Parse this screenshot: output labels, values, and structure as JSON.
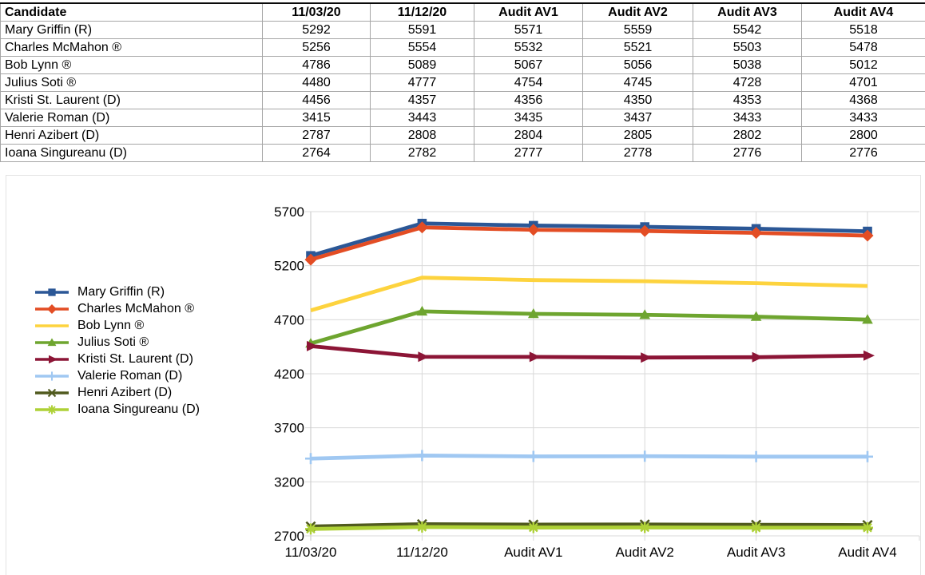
{
  "table": {
    "columns": [
      "Candidate",
      "11/03/20",
      "11/12/20",
      "Audit AV1",
      "Audit AV2",
      "Audit AV3",
      "Audit AV4"
    ],
    "rows": [
      {
        "candidate": "Mary Griffin (R)",
        "values": [
          5292,
          5591,
          5571,
          5559,
          5542,
          5518
        ]
      },
      {
        "candidate": "Charles McMahon ®",
        "values": [
          5256,
          5554,
          5532,
          5521,
          5503,
          5478
        ]
      },
      {
        "candidate": "Bob Lynn ®",
        "values": [
          4786,
          5089,
          5067,
          5056,
          5038,
          5012
        ]
      },
      {
        "candidate": "Julius Soti ®",
        "values": [
          4480,
          4777,
          4754,
          4745,
          4728,
          4701
        ]
      },
      {
        "candidate": "Kristi St. Laurent (D)",
        "values": [
          4456,
          4357,
          4356,
          4350,
          4353,
          4368
        ]
      },
      {
        "candidate": "Valerie Roman (D)",
        "values": [
          3415,
          3443,
          3435,
          3437,
          3433,
          3433
        ]
      },
      {
        "candidate": "Henri Azibert (D)",
        "values": [
          2787,
          2808,
          2804,
          2805,
          2802,
          2800
        ]
      },
      {
        "candidate": "Ioana Singureanu (D)",
        "values": [
          2764,
          2782,
          2777,
          2778,
          2776,
          2776
        ]
      }
    ]
  },
  "chart_data": {
    "type": "line",
    "title": "",
    "xlabel": "",
    "ylabel": "",
    "categories": [
      "11/03/20",
      "11/12/20",
      "Audit AV1",
      "Audit AV2",
      "Audit AV3",
      "Audit AV4"
    ],
    "series": [
      {
        "name": "Mary Griffin (R)",
        "color": "#2B5796",
        "marker": "square",
        "values": [
          5292,
          5591,
          5571,
          5559,
          5542,
          5518
        ]
      },
      {
        "name": "Charles McMahon ®",
        "color": "#E34D24",
        "marker": "diamond",
        "values": [
          5256,
          5554,
          5532,
          5521,
          5503,
          5478
        ]
      },
      {
        "name": "Bob Lynn ®",
        "color": "#FDD33E",
        "marker": "none",
        "values": [
          4786,
          5089,
          5067,
          5056,
          5038,
          5012
        ]
      },
      {
        "name": "Julius Soti ®",
        "color": "#6EA52F",
        "marker": "triangle-up",
        "values": [
          4480,
          4777,
          4754,
          4745,
          4728,
          4701
        ]
      },
      {
        "name": "Kristi St. Laurent (D)",
        "color": "#8C1536",
        "marker": "triangle-right",
        "values": [
          4456,
          4357,
          4356,
          4350,
          4353,
          4368
        ]
      },
      {
        "name": "Valerie Roman (D)",
        "color": "#A0C8F2",
        "marker": "plus",
        "values": [
          3415,
          3443,
          3435,
          3437,
          3433,
          3433
        ]
      },
      {
        "name": "Henri Azibert (D)",
        "color": "#505A1E",
        "marker": "x",
        "values": [
          2787,
          2808,
          2804,
          2805,
          2802,
          2800
        ]
      },
      {
        "name": "Ioana Singureanu (D)",
        "color": "#AED136",
        "marker": "asterisk",
        "values": [
          2764,
          2782,
          2777,
          2778,
          2776,
          2776
        ]
      }
    ],
    "ylim": [
      2700,
      5700
    ],
    "yticks": [
      2700,
      3200,
      3700,
      4200,
      4700,
      5200,
      5700
    ],
    "grid": true,
    "legend_position": "left",
    "gridline_color": "#D9D9D9",
    "axis_line_color": "#C6C6C6",
    "axis_text_color": "#000000"
  }
}
